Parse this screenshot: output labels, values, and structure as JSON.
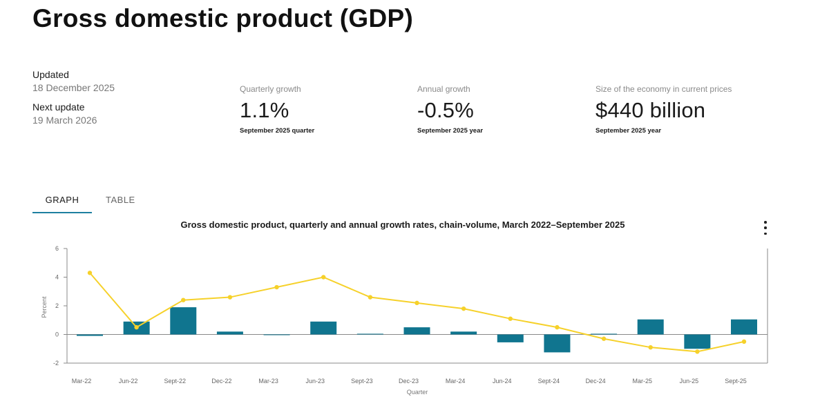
{
  "page": {
    "title": "Gross domestic product (GDP)"
  },
  "meta": {
    "updated_label": "Updated",
    "updated_value": "18 December 2025",
    "next_label": "Next update",
    "next_value": "19 March 2026"
  },
  "stats": [
    {
      "label": "Quarterly growth",
      "value": "1.1%",
      "sub": "September 2025 quarter"
    },
    {
      "label": "Annual growth",
      "value": "-0.5%",
      "sub": "September 2025 year"
    },
    {
      "label": "Size of the economy in current prices",
      "value": "$440 billion",
      "sub": "September 2025 year"
    }
  ],
  "tabs": [
    {
      "label": "GRAPH",
      "active": true
    },
    {
      "label": "TABLE",
      "active": false
    }
  ],
  "chart_data": {
    "type": "bar",
    "title": "Gross domestic product, quarterly and annual growth rates, chain-volume, March 2022–September 2025",
    "xlabel": "Quarter",
    "ylabel": "Percent",
    "ylim": [
      -2,
      6
    ],
    "yticks": [
      -2,
      0,
      2,
      4,
      6
    ],
    "categories": [
      "Mar-22",
      "Jun-22",
      "Sept-22",
      "Dec-22",
      "Mar-23",
      "Jun-23",
      "Sept-23",
      "Dec-23",
      "Mar-24",
      "Jun-24",
      "Sept-24",
      "Dec-24",
      "Mar-25",
      "Jun-25",
      "Sept-25"
    ],
    "series": [
      {
        "type": "bar",
        "color": "#10758f",
        "values": [
          -0.1,
          0.9,
          1.9,
          0.2,
          0.0,
          0.9,
          0.05,
          0.5,
          0.2,
          -0.55,
          -1.25,
          0.05,
          1.05,
          -1.0,
          1.05
        ]
      },
      {
        "type": "line",
        "color": "#f6d12a",
        "values": [
          4.3,
          0.5,
          2.4,
          2.6,
          3.3,
          4.0,
          2.6,
          2.2,
          1.8,
          1.1,
          0.5,
          -0.3,
          -0.9,
          -1.2,
          -0.5
        ]
      }
    ],
    "grid": false,
    "axis_color": "#888888"
  }
}
